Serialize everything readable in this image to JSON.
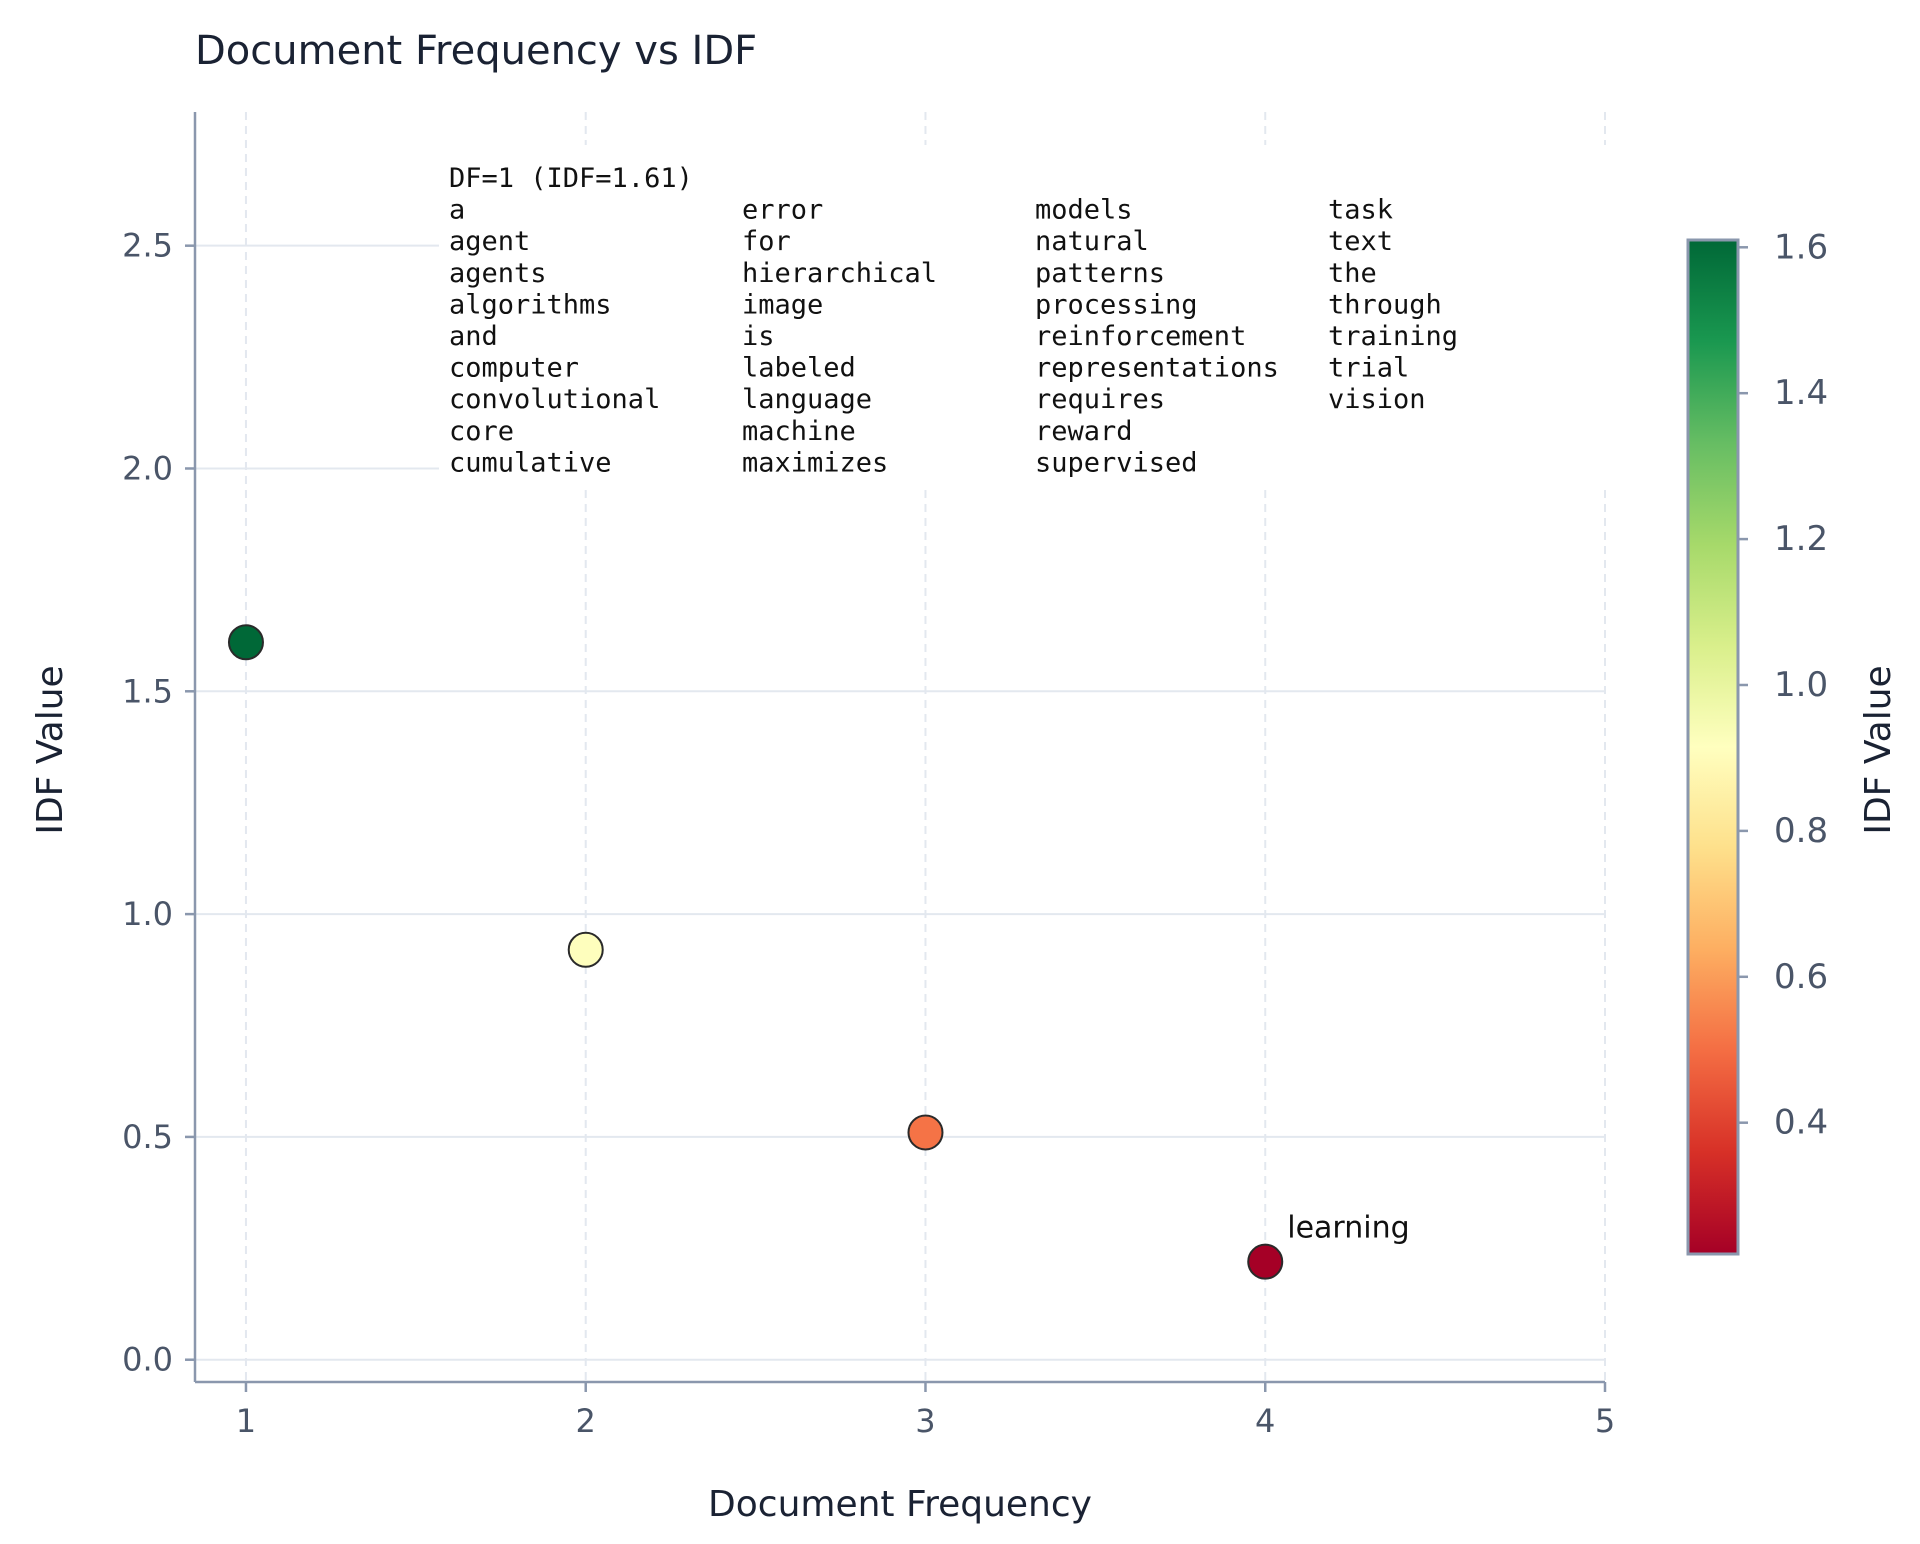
{
  "chart_data": {
    "type": "scatter",
    "title": "Document Frequency vs IDF",
    "xlabel": "Document Frequency",
    "ylabel": "IDF Value",
    "xlim": [
      0.85,
      5
    ],
    "ylim": [
      -0.05,
      2.8
    ],
    "xticks": [
      1,
      2,
      3,
      4,
      5
    ],
    "xtick_labels": [
      "1",
      "2",
      "3",
      "4",
      "5"
    ],
    "yticks": [
      0.0,
      0.5,
      1.0,
      1.5,
      2.0,
      2.5
    ],
    "ytick_labels": [
      "0.0",
      "0.5",
      "1.0",
      "1.5",
      "2.0",
      "2.5"
    ],
    "grid": true,
    "points": [
      {
        "x": 1,
        "y": 1.61
      },
      {
        "x": 2,
        "y": 0.92
      },
      {
        "x": 3,
        "y": 0.51
      },
      {
        "x": 4,
        "y": 0.22
      }
    ],
    "point_labels": [
      {
        "x": 4,
        "y": 0.22,
        "text": "learning"
      }
    ],
    "colorbar": {
      "label": "IDF Value",
      "colormap": "RdYlGn",
      "range": [
        0.22,
        1.61
      ],
      "ticks": [
        0.4,
        0.6,
        0.8,
        1.0,
        1.2,
        1.4,
        1.6
      ],
      "tick_labels": [
        "0.4",
        "0.6",
        "0.8",
        "1.0",
        "1.2",
        "1.4",
        "1.6"
      ],
      "colors": [
        "#a50026",
        "#d73027",
        "#f46d43",
        "#fdae61",
        "#fee08b",
        "#ffffbf",
        "#d9ef8b",
        "#a6d96a",
        "#66bd63",
        "#1a9850",
        "#006837"
      ]
    },
    "annotation": {
      "header": "DF=1 (IDF=1.61)",
      "columns": [
        [
          "a",
          "agent",
          "agents",
          "algorithms",
          "and",
          "computer",
          "convolutional",
          "core",
          "cumulative"
        ],
        [
          "error",
          "for",
          "hierarchical",
          "image",
          "is",
          "labeled",
          "language",
          "machine",
          "maximizes"
        ],
        [
          "models",
          "natural",
          "patterns",
          "processing",
          "reinforcement",
          "representations",
          "requires",
          "reward",
          "supervised"
        ],
        [
          "task",
          "text",
          "the",
          "through",
          "training",
          "trial",
          "vision"
        ]
      ]
    }
  },
  "colors": {
    "title": "#1a2233",
    "axis": "#8a97ad",
    "tick_label": "#4a5568",
    "grid": "#e3e8ef",
    "marker_edge": "#2a2a2a"
  }
}
